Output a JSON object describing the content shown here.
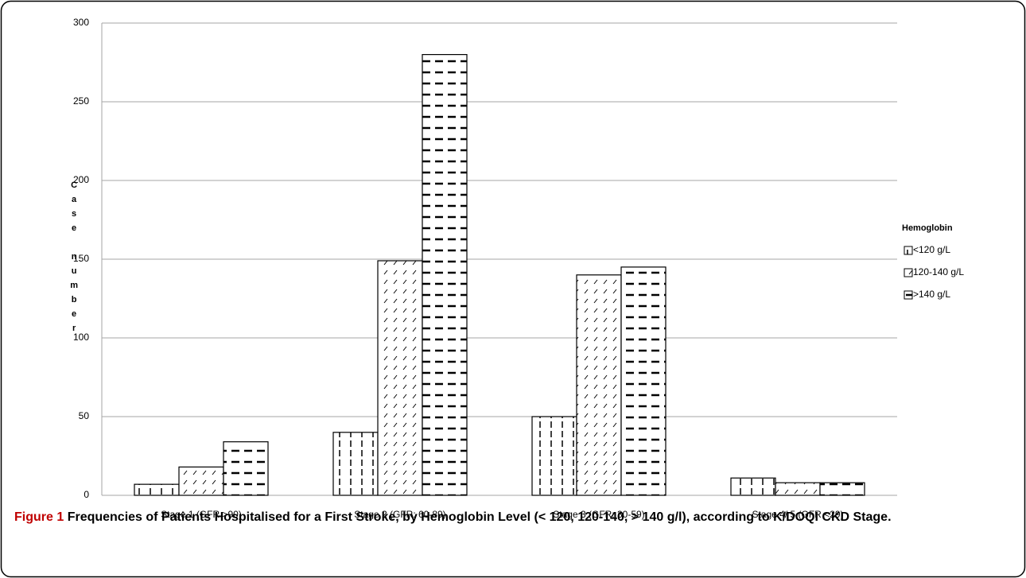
{
  "chart_data": {
    "type": "bar",
    "categories": [
      "Stage 1 (GFR >90)",
      "Stage 2 (GFR: 60-89)",
      "Stage 3 (GFR: 30-59)",
      "Stage 4/ 5 (GFR <29)"
    ],
    "series": [
      {
        "name": "<120 g/L",
        "color": "#000000",
        "pattern": "vertical-dash",
        "values": [
          7,
          40,
          50,
          11
        ]
      },
      {
        "name": "120-140 g/L",
        "color": "#000000",
        "pattern": "diagonal-dash",
        "values": [
          18,
          149,
          140,
          8
        ]
      },
      {
        "name": ">140 g/L",
        "color": "#000000",
        "pattern": "horizontal-dash",
        "values": [
          34,
          280,
          145,
          8
        ]
      }
    ],
    "y_label": "Case number",
    "legend_title": "Hemoglobin",
    "legend": "right",
    "ylim": [
      0,
      300
    ],
    "yticks": [
      0,
      50,
      100,
      150,
      200,
      250,
      300
    ],
    "grid": true,
    "caption_label": "Figure 1",
    "caption": "Frequencies of Patients Hospitalised for a First Stroke, by Hemoglobin Level (< 120, 120-140, > 140 g/l), according to K/DOQI CKD Stage."
  }
}
